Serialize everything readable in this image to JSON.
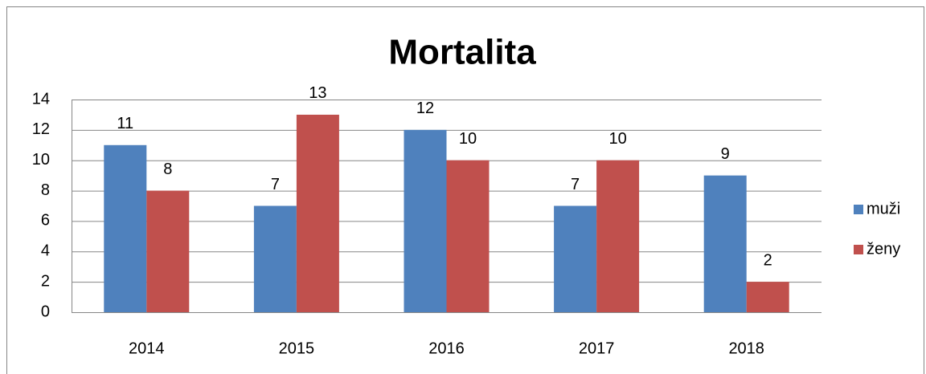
{
  "chart_data": {
    "type": "bar",
    "title": "Mortalita",
    "categories": [
      "2014",
      "2015",
      "2016",
      "2017",
      "2018"
    ],
    "series": [
      {
        "name": "muži",
        "color": "#4f81bd",
        "values": [
          11,
          7,
          12,
          7,
          9
        ]
      },
      {
        "name": "ženy",
        "color": "#c0504d",
        "values": [
          8,
          13,
          10,
          10,
          2
        ]
      }
    ],
    "ylim": [
      0,
      14
    ],
    "yticks": [
      0,
      2,
      4,
      6,
      8,
      10,
      12,
      14
    ],
    "grid": true,
    "legend": "right"
  }
}
